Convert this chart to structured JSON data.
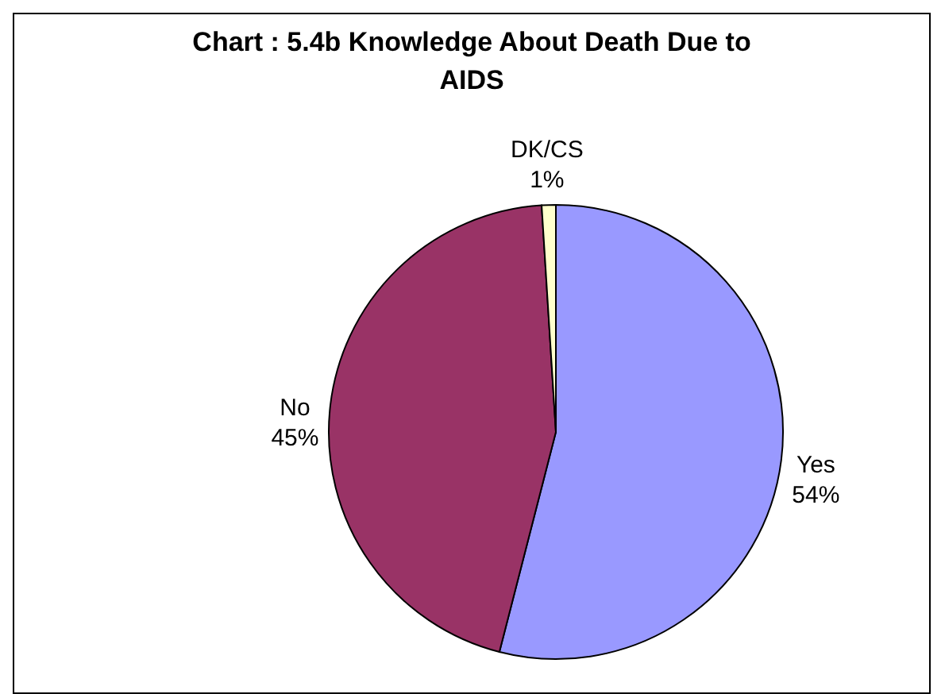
{
  "chart_data": {
    "type": "pie",
    "title": "Chart : 5.4b Knowledge About Death Due to AIDS",
    "categories": [
      "Yes",
      "No",
      "DK/CS"
    ],
    "values": [
      54,
      45,
      1
    ],
    "colors": [
      "#9999ff",
      "#993366",
      "#ffffcc"
    ],
    "value_labels": [
      "54%",
      "45%",
      "1%"
    ],
    "legend": false
  }
}
